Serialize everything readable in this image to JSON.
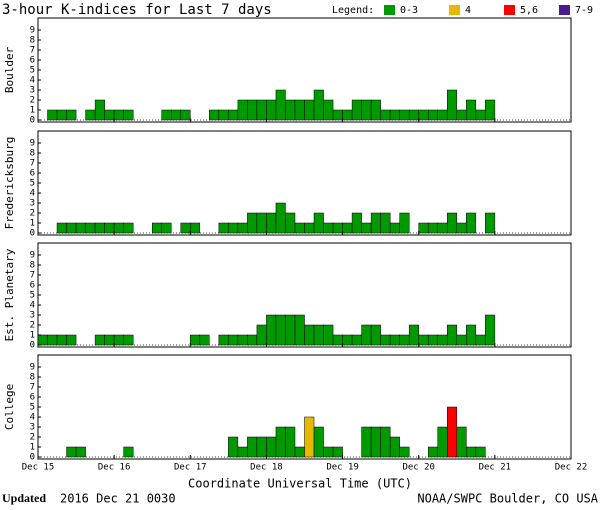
{
  "header": {
    "title": "3-hour K-indices for Last 7 days",
    "legend_title": "Legend:",
    "legend": [
      {
        "label": "0-3",
        "color": "#009900"
      },
      {
        "label": "4",
        "color": "#e8b800"
      },
      {
        "label": "5,6",
        "color": "#ff0000"
      },
      {
        "label": "7-9",
        "color": "#4b1a8c"
      }
    ]
  },
  "x_axis": {
    "label": "Coordinate Universal Time (UTC)",
    "ticks": [
      "Dec 15",
      "Dec 16",
      "Dec 17",
      "Dec 18",
      "Dec 19",
      "Dec 20",
      "Dec 21",
      "Dec 22"
    ]
  },
  "chart_data": [
    {
      "type": "bar",
      "ylabel": "Boulder",
      "ylim": [
        0,
        9
      ],
      "yticks": [
        0,
        1,
        2,
        3,
        4,
        5,
        6,
        7,
        8,
        9
      ],
      "values": [
        0,
        1,
        1,
        1,
        0,
        1,
        2,
        1,
        1,
        1,
        0,
        0,
        0,
        1,
        1,
        1,
        0,
        0,
        1,
        1,
        1,
        2,
        2,
        2,
        2,
        3,
        2,
        2,
        2,
        3,
        2,
        1,
        1,
        2,
        2,
        2,
        1,
        1,
        1,
        1,
        1,
        1,
        1,
        3,
        1,
        2,
        1,
        2
      ]
    },
    {
      "type": "bar",
      "ylabel": "Fredericksburg",
      "ylim": [
        0,
        9
      ],
      "yticks": [
        0,
        1,
        2,
        3,
        4,
        5,
        6,
        7,
        8,
        9
      ],
      "values": [
        0,
        0,
        1,
        1,
        1,
        1,
        1,
        1,
        1,
        1,
        0,
        0,
        1,
        1,
        0,
        1,
        1,
        0,
        0,
        1,
        1,
        1,
        2,
        2,
        2,
        3,
        2,
        1,
        1,
        2,
        1,
        1,
        1,
        2,
        1,
        2,
        2,
        1,
        2,
        0,
        1,
        1,
        1,
        2,
        1,
        2,
        0,
        2
      ]
    },
    {
      "type": "bar",
      "ylabel": "Est. Planetary",
      "ylim": [
        0,
        9
      ],
      "yticks": [
        0,
        1,
        2,
        3,
        4,
        5,
        6,
        7,
        8,
        9
      ],
      "values": [
        1,
        1,
        1,
        1,
        0,
        0,
        1,
        1,
        1,
        1,
        0,
        0,
        0,
        0,
        0,
        0,
        1,
        1,
        0,
        1,
        1,
        1,
        1,
        2,
        3,
        3,
        3,
        3,
        2,
        2,
        2,
        1,
        1,
        1,
        2,
        2,
        1,
        1,
        1,
        2,
        1,
        1,
        1,
        2,
        1,
        2,
        1,
        3
      ]
    },
    {
      "type": "bar",
      "ylabel": "College",
      "ylim": [
        0,
        9
      ],
      "yticks": [
        0,
        1,
        2,
        3,
        4,
        5,
        6,
        7,
        8,
        9
      ],
      "values": [
        0,
        0,
        0,
        1,
        1,
        0,
        0,
        0,
        0,
        1,
        0,
        0,
        0,
        0,
        0,
        0,
        0,
        0,
        0,
        0,
        2,
        1,
        2,
        2,
        2,
        3,
        3,
        1,
        4,
        3,
        1,
        1,
        0,
        0,
        3,
        3,
        3,
        2,
        1,
        0,
        0,
        1,
        3,
        5,
        3,
        1,
        1,
        0
      ]
    }
  ],
  "footer": {
    "updated_label": "Updated",
    "updated": "2016 Dec 21 0030",
    "credit": "NOAA/SWPC Boulder, CO USA"
  }
}
